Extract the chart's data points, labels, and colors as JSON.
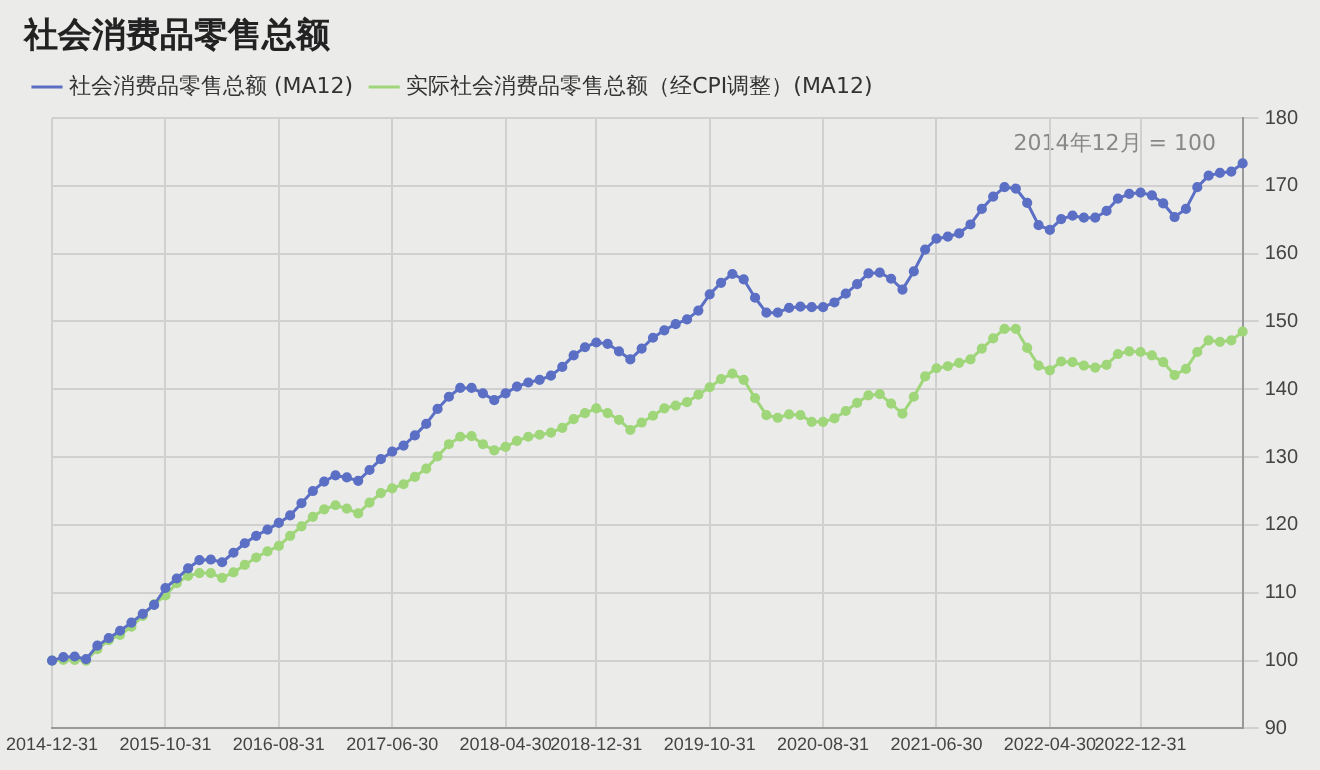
{
  "chart_data": {
    "type": "line",
    "title": "社会消费品零售总额",
    "categories": [
      "2014-12-31",
      null,
      null,
      null,
      null,
      null,
      null,
      null,
      null,
      null,
      "2015-10-31",
      null,
      null,
      null,
      null,
      null,
      null,
      null,
      null,
      null,
      "2016-08-31",
      null,
      null,
      null,
      null,
      null,
      null,
      null,
      null,
      null,
      "2017-06-30",
      null,
      null,
      null,
      null,
      null,
      null,
      null,
      null,
      null,
      "2018-04-30",
      null,
      null,
      null,
      null,
      null,
      null,
      null,
      "2018-12-31",
      null,
      null,
      null,
      null,
      null,
      null,
      null,
      null,
      null,
      "2019-10-31",
      null,
      null,
      null,
      null,
      null,
      null,
      null,
      null,
      null,
      "2020-08-31",
      null,
      null,
      null,
      null,
      null,
      null,
      null,
      null,
      null,
      "2021-06-30",
      null,
      null,
      null,
      null,
      null,
      null,
      null,
      null,
      null,
      "2022-04-30",
      null,
      null,
      null,
      null,
      null,
      null,
      null,
      "2022-12-31",
      null,
      null,
      null,
      null,
      null,
      null,
      null,
      null,
      null
    ],
    "series": [
      {
        "name": "社会消费品零售总额 (MA12)",
        "color": "#5b6fc4",
        "values": [
          100,
          100.5,
          100.6,
          100.2,
          102.2,
          103.3,
          104.4,
          105.6,
          106.9,
          108.2,
          110.7,
          112.1,
          113.6,
          114.8,
          114.9,
          114.5,
          115.9,
          117.3,
          118.4,
          119.3,
          120.3,
          121.4,
          123.2,
          125,
          126.4,
          127.3,
          127,
          126.5,
          128.1,
          129.7,
          130.8,
          131.7,
          133.2,
          134.9,
          137.1,
          138.9,
          140.2,
          140.2,
          139.4,
          138.4,
          139.4,
          140.4,
          141,
          141.4,
          142,
          143.3,
          145,
          146.2,
          146.9,
          146.7,
          145.6,
          144.4,
          146,
          147.6,
          148.7,
          149.6,
          150.3,
          151.6,
          154,
          155.7,
          157,
          156.2,
          153.5,
          151.3,
          151.3,
          152,
          152.2,
          152.1,
          152.1,
          152.8,
          154.1,
          155.5,
          157.1,
          157.2,
          156.3,
          154.7,
          157.4,
          160.6,
          162.2,
          162.5,
          163,
          164.3,
          166.6,
          168.4,
          169.8,
          169.6,
          167.5,
          164.2,
          163.5,
          165.1,
          165.6,
          165.3,
          165.3,
          166.3,
          168.1,
          168.8,
          169,
          168.6,
          167.4,
          165.4,
          166.6,
          169.8,
          171.5,
          171.9,
          172.1,
          173.3
        ]
      },
      {
        "name": "实际社会消费品零售总额（经CPI调整）(MA12)",
        "color": "#9fd67a",
        "values": [
          100,
          100.1,
          100.1,
          100,
          101.7,
          103,
          103.8,
          105,
          106.6,
          108.3,
          109.6,
          111.4,
          112.5,
          112.9,
          112.9,
          112.2,
          113,
          114.1,
          115.2,
          116.1,
          116.9,
          118.4,
          119.8,
          121.2,
          122.3,
          122.9,
          122.4,
          121.7,
          123.3,
          124.7,
          125.4,
          126,
          127.1,
          128.3,
          130.1,
          131.9,
          133,
          133.1,
          131.9,
          131,
          131.5,
          132.4,
          133,
          133.3,
          133.6,
          134.3,
          135.6,
          136.5,
          137.2,
          136.5,
          135.5,
          134,
          135.1,
          136.1,
          137.2,
          137.6,
          138.1,
          139.2,
          140.3,
          141.5,
          142.3,
          141.4,
          138.7,
          136.2,
          135.8,
          136.3,
          136.2,
          135.2,
          135.2,
          135.7,
          136.8,
          138,
          139.1,
          139.3,
          137.9,
          136.4,
          138.9,
          141.9,
          143.1,
          143.4,
          143.9,
          144.4,
          146,
          147.5,
          148.9,
          148.9,
          146.1,
          143.5,
          142.8,
          144.1,
          144,
          143.5,
          143.2,
          143.6,
          145.2,
          145.6,
          145.5,
          145,
          144,
          142.1,
          143,
          145.5,
          147.2,
          147,
          147.2,
          148.5
        ]
      }
    ],
    "ylim": [
      90,
      180
    ],
    "yticks": [
      90,
      100,
      110,
      120,
      130,
      140,
      150,
      160,
      170,
      180
    ],
    "annotations": [
      "2014年12月 = 100"
    ],
    "grid": true,
    "legend": "top left",
    "marker": "circle",
    "line_style": "solid"
  }
}
